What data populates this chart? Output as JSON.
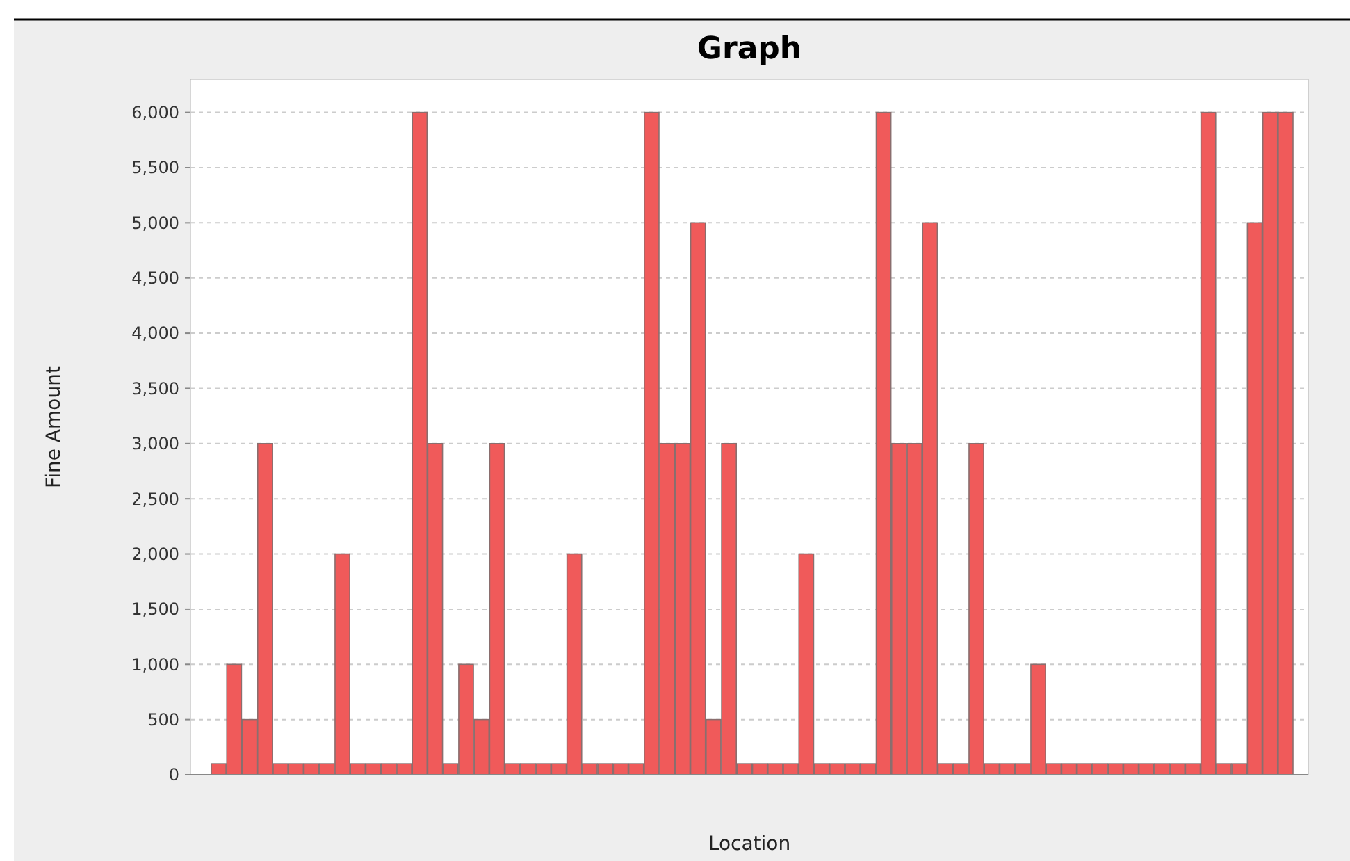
{
  "chart_data": {
    "type": "bar",
    "title": "Graph",
    "xlabel": "Location",
    "ylabel": "Fine Amount",
    "categories": [
      null,
      null,
      null,
      null,
      null,
      null,
      null,
      null,
      null,
      null,
      null,
      null,
      null,
      null,
      null,
      null,
      null,
      null,
      null,
      null,
      null,
      null,
      null,
      null,
      null,
      null,
      null,
      null,
      null,
      null,
      null,
      null,
      null,
      null,
      null,
      null,
      null,
      null,
      null,
      null,
      null,
      null,
      null,
      null,
      null,
      null,
      null,
      null,
      null,
      null,
      null,
      null,
      null,
      null,
      null,
      null,
      null,
      null,
      null,
      null,
      null,
      null,
      null,
      null,
      null,
      null,
      null,
      null,
      null,
      null
    ],
    "values": [
      100,
      1000,
      500,
      3000,
      100,
      100,
      100,
      100,
      2000,
      100,
      100,
      100,
      100,
      6000,
      3000,
      100,
      1000,
      500,
      3000,
      100,
      100,
      100,
      100,
      2000,
      100,
      100,
      100,
      100,
      6000,
      3000,
      3000,
      5000,
      500,
      3000,
      100,
      100,
      100,
      100,
      2000,
      100,
      100,
      100,
      100,
      6000,
      3000,
      3000,
      5000,
      100,
      100,
      3000,
      100,
      100,
      100,
      1000,
      100,
      100,
      100,
      100,
      100,
      100,
      100,
      100,
      100,
      100,
      6000,
      100,
      100,
      5000,
      6000,
      6000
    ],
    "color": "#f05a5a",
    "ylim": [
      0,
      6300
    ],
    "yticks": [
      0,
      500,
      {
        "value": 1000,
        "label": "1,000"
      },
      {
        "value": 1500,
        "label": "1,500"
      },
      {
        "value": 2000,
        "label": "2,000"
      },
      {
        "value": 2500,
        "label": "2,500"
      },
      {
        "value": 3000,
        "label": "3,000"
      },
      {
        "value": 3500,
        "label": "3,500"
      },
      {
        "value": 4000,
        "label": "4,000"
      },
      {
        "value": 4500,
        "label": "4,500"
      },
      {
        "value": 5000,
        "label": "5,000"
      },
      {
        "value": 5500,
        "label": "5,500"
      },
      {
        "value": 6000,
        "label": "6,000"
      }
    ],
    "grid": "y",
    "tick_labels": "y"
  }
}
